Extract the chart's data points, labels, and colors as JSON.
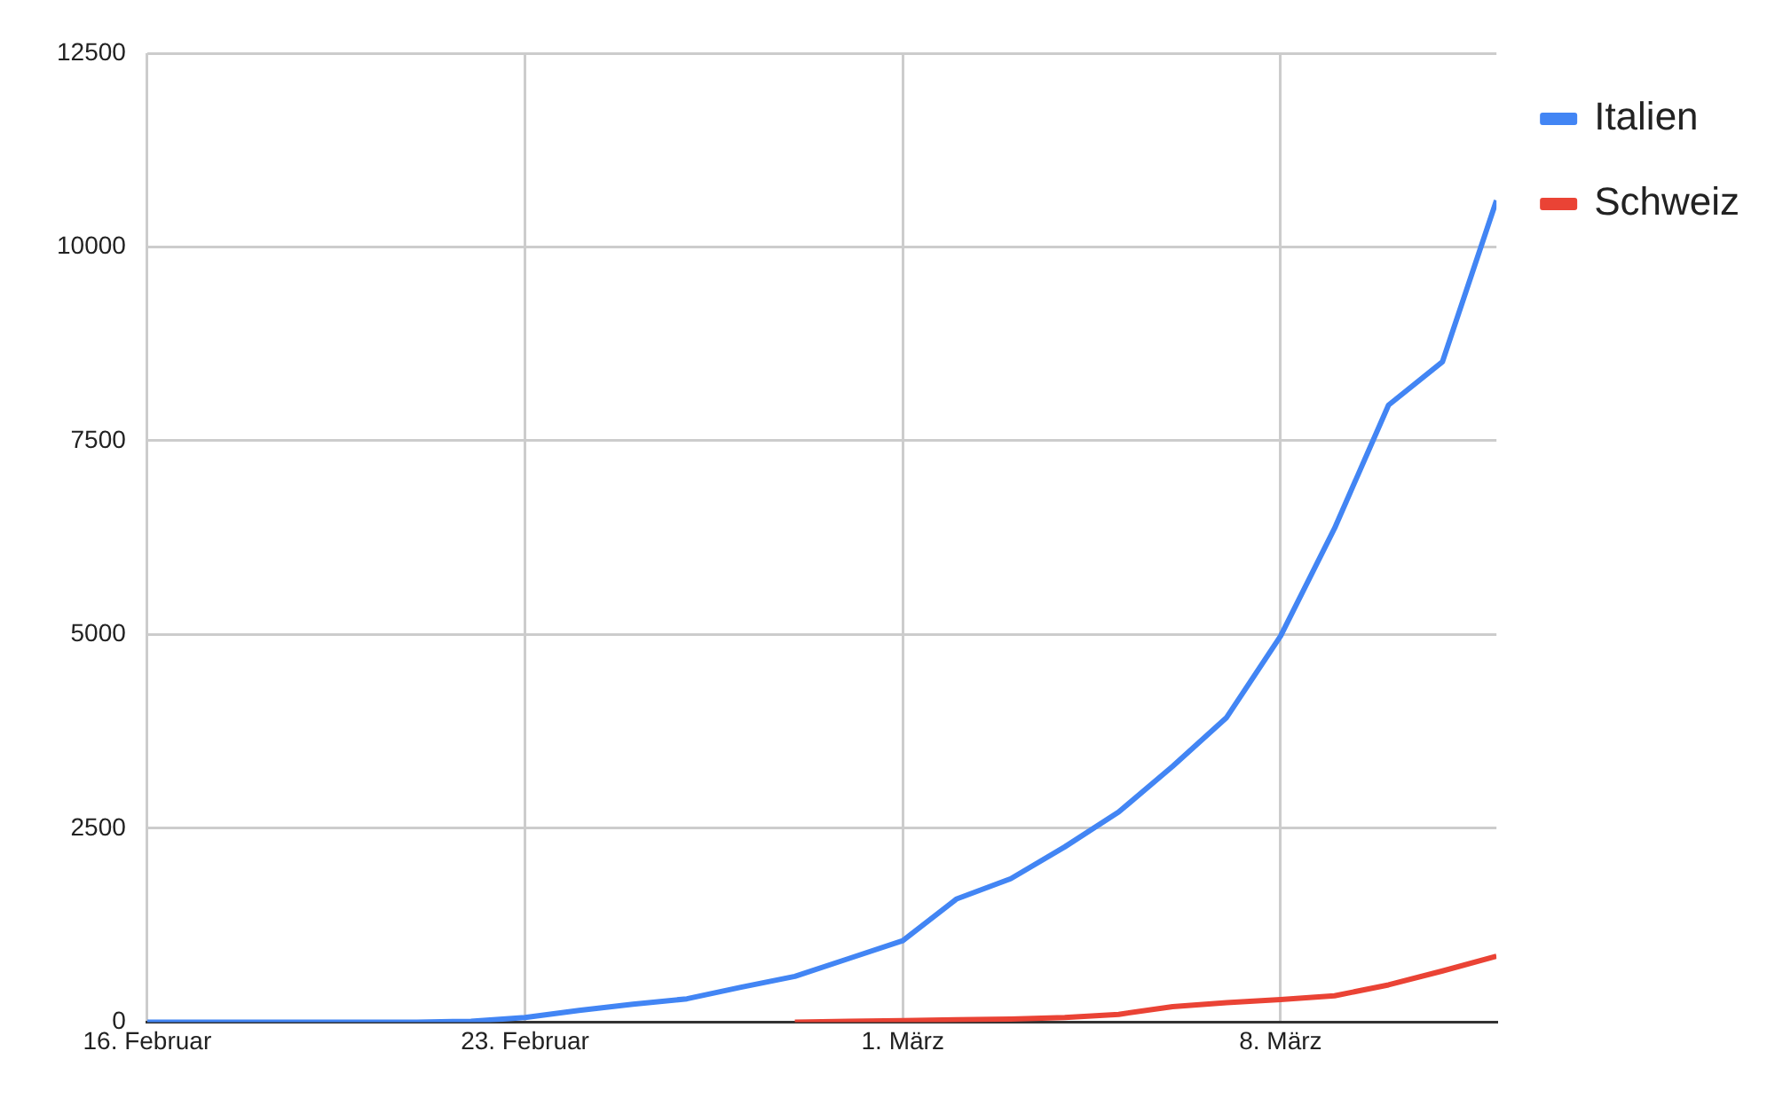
{
  "chart_data": {
    "type": "line",
    "x": [
      "--02-16",
      "--02-17",
      "--02-18",
      "--02-19",
      "--02-20",
      "--02-21",
      "--02-22",
      "--02-23",
      "--02-24",
      "--02-25",
      "--02-26",
      "--02-27",
      "--02-28",
      "--02-29",
      "--03-01",
      "--03-02",
      "--03-03",
      "--03-04",
      "--03-05",
      "--03-06",
      "--03-07",
      "--03-08",
      "--03-09",
      "--03-10",
      "--03-11",
      "--03-12"
    ],
    "series": [
      {
        "name": "Italien",
        "color": "#4285f4",
        "values": [
          0,
          0,
          0,
          0,
          0,
          0,
          10,
          60,
          150,
          230,
          300,
          450,
          590,
          820,
          1050,
          1590,
          1850,
          2260,
          2710,
          3300,
          3930,
          4980,
          6370,
          7960,
          8520,
          10600
        ]
      },
      {
        "name": "Schweiz",
        "color": "#ea4335",
        "values": [
          null,
          null,
          null,
          null,
          null,
          null,
          null,
          null,
          null,
          null,
          null,
          null,
          0,
          10,
          20,
          30,
          40,
          60,
          100,
          200,
          250,
          290,
          340,
          480,
          660,
          850
        ]
      }
    ],
    "xlim": [
      "--02-16",
      "--03-12"
    ],
    "xticks": [
      {
        "value": "--02-16",
        "label": "16. Februar"
      },
      {
        "value": "--02-23",
        "label": "23. Februar"
      },
      {
        "value": "--03-01",
        "label": "1. März"
      },
      {
        "value": "--03-08",
        "label": "8. März"
      }
    ],
    "ylim": [
      0,
      12500
    ],
    "yticks": [
      0,
      2500,
      5000,
      7500,
      10000,
      12500
    ],
    "grid": true,
    "legend": "top right",
    "marker": "none",
    "line_style": "solid"
  }
}
